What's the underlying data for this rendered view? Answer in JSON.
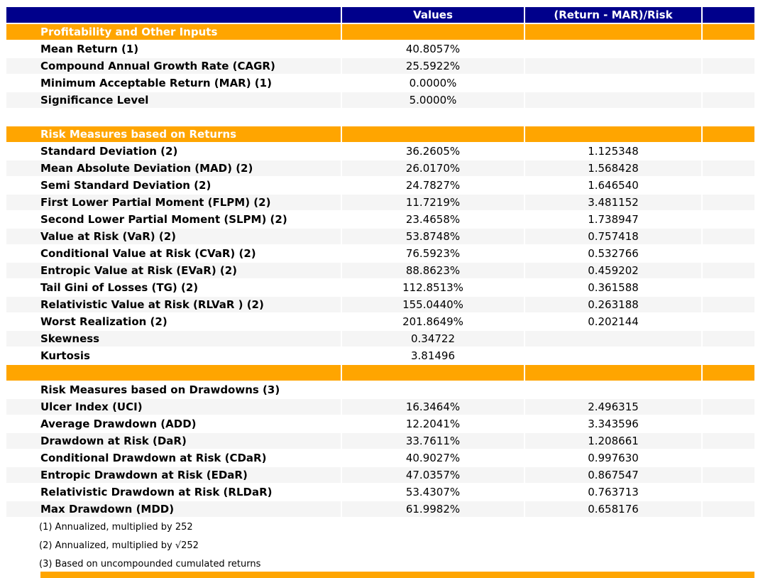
{
  "colors": {
    "header_navy": "#00008B",
    "section_orange": "#FFA500",
    "stripe_gray": "#F5F5F5",
    "text_black": "#000000",
    "text_white": "#FFFFFF"
  },
  "header": {
    "label_col": "",
    "values_label": "Values",
    "ratio_label": "(Return - MAR)/Risk"
  },
  "rows": [
    {
      "type": "section",
      "label": "Profitability and Other Inputs",
      "value": "",
      "ratio": ""
    },
    {
      "type": "data",
      "shade": false,
      "label": "Mean Return (1)",
      "value": "40.8057%",
      "ratio": ""
    },
    {
      "type": "data",
      "shade": true,
      "label": "Compound Annual Growth Rate (CAGR)",
      "value": "25.5922%",
      "ratio": ""
    },
    {
      "type": "data",
      "shade": false,
      "label": "Minimum Acceptable Return (MAR) (1)",
      "value": "0.0000%",
      "ratio": ""
    },
    {
      "type": "data",
      "shade": true,
      "label": "Significance Level",
      "value": "5.0000%",
      "ratio": ""
    },
    {
      "type": "spacer",
      "label": "",
      "value": "",
      "ratio": ""
    },
    {
      "type": "section",
      "label": "Risk Measures based on Returns",
      "value": "",
      "ratio": ""
    },
    {
      "type": "data",
      "shade": false,
      "label": "Standard Deviation (2)",
      "value": "36.2605%",
      "ratio": "1.125348"
    },
    {
      "type": "data",
      "shade": true,
      "label": "Mean Absolute Deviation (MAD) (2)",
      "value": "26.0170%",
      "ratio": "1.568428"
    },
    {
      "type": "data",
      "shade": false,
      "label": "Semi Standard Deviation (2)",
      "value": "24.7827%",
      "ratio": "1.646540"
    },
    {
      "type": "data",
      "shade": true,
      "label": "First Lower Partial Moment (FLPM) (2)",
      "value": "11.7219%",
      "ratio": "3.481152"
    },
    {
      "type": "data",
      "shade": false,
      "label": "Second Lower Partial Moment (SLPM) (2)",
      "value": "23.4658%",
      "ratio": "1.738947"
    },
    {
      "type": "data",
      "shade": true,
      "label": "Value at Risk (VaR) (2)",
      "value": "53.8748%",
      "ratio": "0.757418"
    },
    {
      "type": "data",
      "shade": false,
      "label": "Conditional Value at Risk (CVaR) (2)",
      "value": "76.5923%",
      "ratio": "0.532766"
    },
    {
      "type": "data",
      "shade": true,
      "label": "Entropic Value at Risk (EVaR) (2)",
      "value": "88.8623%",
      "ratio": "0.459202"
    },
    {
      "type": "data",
      "shade": false,
      "label": "Tail Gini of Losses (TG) (2)",
      "value": "112.8513%",
      "ratio": "0.361588"
    },
    {
      "type": "data",
      "shade": true,
      "label": "Relativistic Value at Risk (RLVaR ) (2)",
      "value": "155.0440%",
      "ratio": "0.263188"
    },
    {
      "type": "data",
      "shade": false,
      "label": "Worst Realization (2)",
      "value": "201.8649%",
      "ratio": "0.202144"
    },
    {
      "type": "data",
      "shade": true,
      "label": "Skewness",
      "value": "0.34722",
      "ratio": ""
    },
    {
      "type": "data",
      "shade": false,
      "label": "Kurtosis",
      "value": "3.81496",
      "ratio": ""
    },
    {
      "type": "orange-spacer",
      "label": "",
      "value": "",
      "ratio": ""
    },
    {
      "type": "subheader",
      "label": "Risk Measures based on Drawdowns (3)",
      "value": "",
      "ratio": ""
    },
    {
      "type": "data",
      "shade": true,
      "label": "Ulcer Index (UCI)",
      "value": "16.3464%",
      "ratio": "2.496315"
    },
    {
      "type": "data",
      "shade": false,
      "label": "Average Drawdown (ADD)",
      "value": "12.2041%",
      "ratio": "3.343596"
    },
    {
      "type": "data",
      "shade": true,
      "label": "Drawdown at Risk (DaR)",
      "value": "33.7611%",
      "ratio": "1.208661"
    },
    {
      "type": "data",
      "shade": false,
      "label": "Conditional Drawdown at Risk (CDaR)",
      "value": "40.9027%",
      "ratio": "0.997630"
    },
    {
      "type": "data",
      "shade": true,
      "label": "Entropic Drawdown at Risk (EDaR)",
      "value": "47.0357%",
      "ratio": "0.867547"
    },
    {
      "type": "data",
      "shade": false,
      "label": "Relativistic Drawdown at Risk (RLDaR)",
      "value": "53.4307%",
      "ratio": "0.763713"
    },
    {
      "type": "data",
      "shade": true,
      "label": "Max Drawdown (MDD)",
      "value": "61.9982%",
      "ratio": "0.658176"
    }
  ],
  "footnotes": [
    "(1) Annualized, multiplied by 252",
    "(2) Annualized, multiplied by √252",
    "(3) Based on uncompounded cumulated returns"
  ]
}
